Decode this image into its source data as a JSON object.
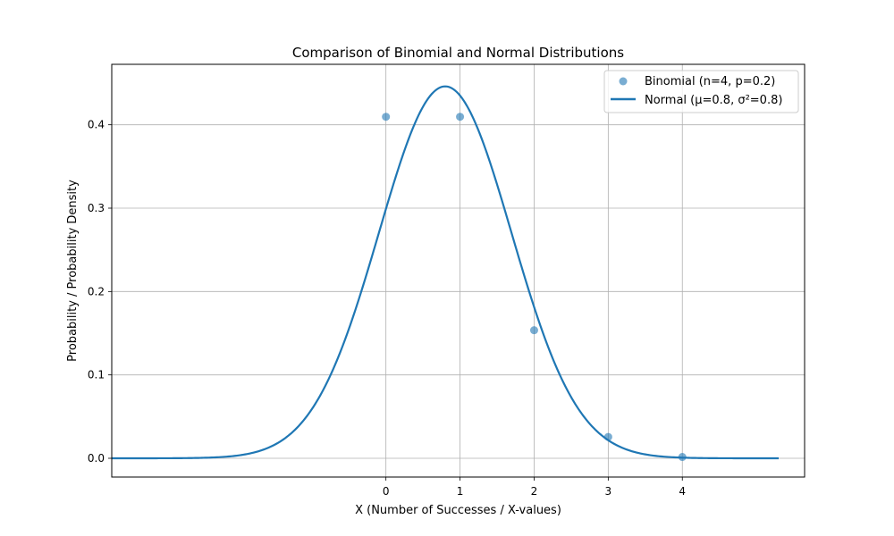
{
  "chart_data": {
    "type": "scatter",
    "title": "Comparison of Binomial and Normal Distributions",
    "xlabel": "X (Number of Successes / X-values)",
    "ylabel": "Probability / Probability Density",
    "xlim": [
      -3.7,
      5.65
    ],
    "ylim": [
      -0.0225,
      0.4725
    ],
    "xticks": [
      0,
      1,
      2,
      3,
      4
    ],
    "yticks": [
      0.0,
      0.1,
      0.2,
      0.3,
      0.4
    ],
    "xtick_labels": [
      "0",
      "1",
      "2",
      "3",
      "4"
    ],
    "ytick_labels": [
      "0.0",
      "0.1",
      "0.2",
      "0.3",
      "0.4"
    ],
    "grid": true,
    "legend_position": "top-right",
    "series": [
      {
        "name": "Binomial (n=4, p=0.2)",
        "kind": "scatter",
        "color": "#1f77b4",
        "x": [
          0,
          1,
          2,
          3,
          4
        ],
        "y": [
          0.4096,
          0.4096,
          0.1536,
          0.0256,
          0.0016
        ]
      },
      {
        "name": "Normal (μ=0.8, σ²=0.8)",
        "kind": "line",
        "color": "#1f77b4",
        "mu": 0.8,
        "variance": 0.8,
        "x_range": [
          -3.7,
          5.3
        ]
      }
    ]
  }
}
